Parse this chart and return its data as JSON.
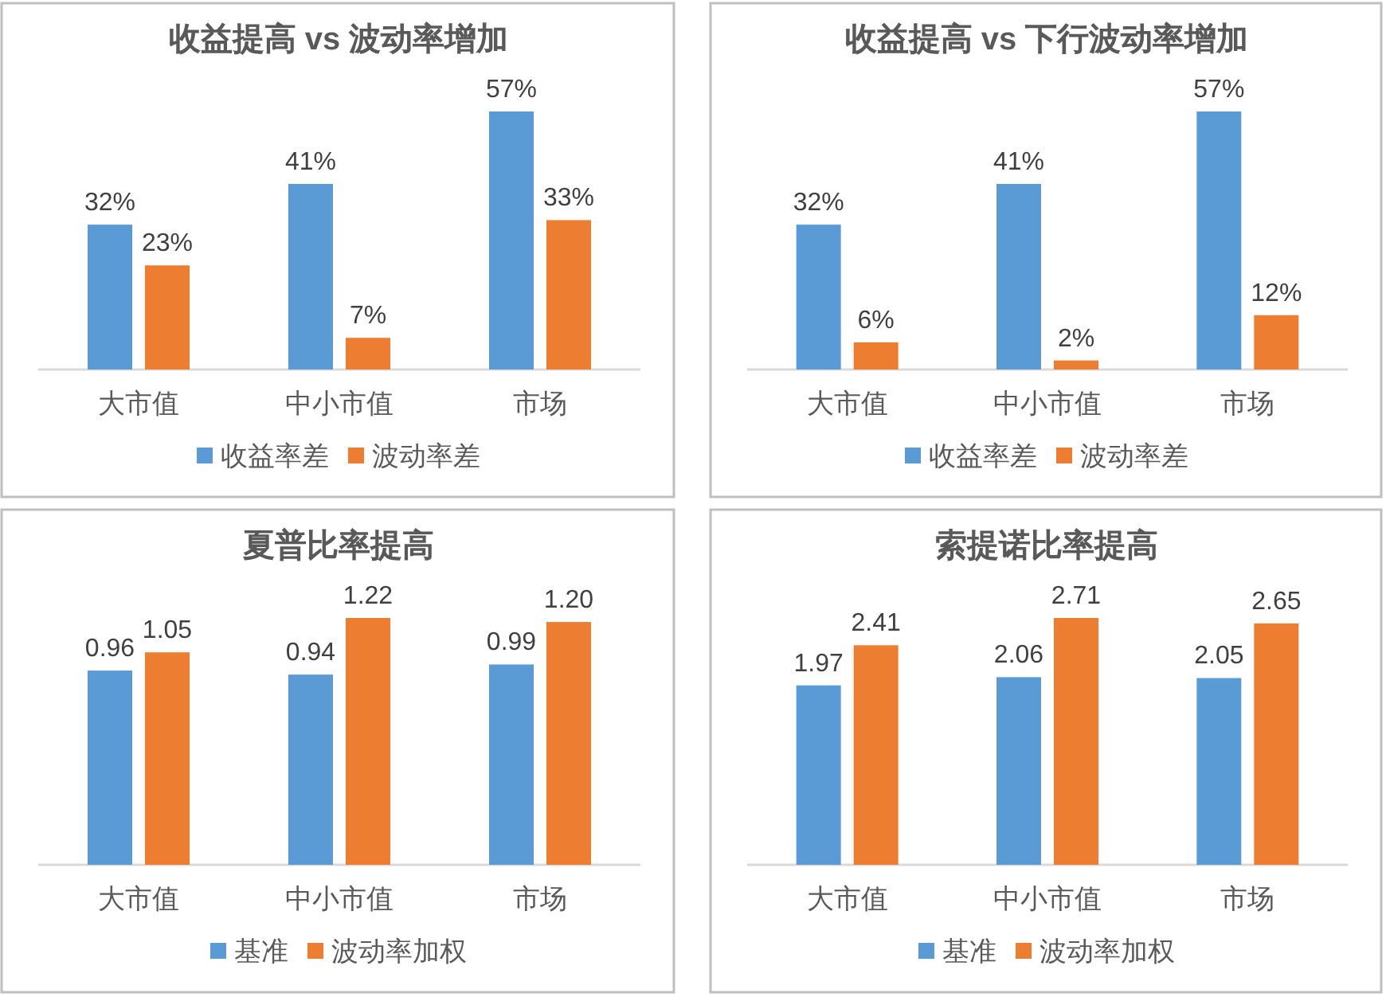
{
  "chart_data": [
    {
      "type": "bar",
      "title": "收益提高 vs 波动率增加",
      "categories": [
        "大市值",
        "中小市值",
        "市场"
      ],
      "series": [
        {
          "name": "收益率差",
          "color": "#5b9bd5",
          "values": [
            32,
            41,
            57
          ],
          "value_labels": [
            "32%",
            "41%",
            "57%"
          ]
        },
        {
          "name": "波动率差",
          "color": "#ed7d31",
          "values": [
            23,
            7,
            33
          ],
          "value_labels": [
            "23%",
            "7%",
            "33%"
          ]
        }
      ],
      "legend": "bottom"
    },
    {
      "type": "bar",
      "title": "收益提高 vs 下行波动率增加",
      "categories": [
        "大市值",
        "中小市值",
        "市场"
      ],
      "series": [
        {
          "name": "收益率差",
          "color": "#5b9bd5",
          "values": [
            32,
            41,
            57
          ],
          "value_labels": [
            "32%",
            "41%",
            "57%"
          ]
        },
        {
          "name": "波动率差",
          "color": "#ed7d31",
          "values": [
            6,
            2,
            12
          ],
          "value_labels": [
            "6%",
            "2%",
            "12%"
          ]
        }
      ],
      "legend": "bottom"
    },
    {
      "type": "bar",
      "title": "夏普比率提高",
      "categories": [
        "大市值",
        "中小市值",
        "市场"
      ],
      "series": [
        {
          "name": "基准",
          "color": "#5b9bd5",
          "values": [
            0.96,
            0.94,
            0.99
          ],
          "value_labels": [
            "0.96",
            "0.94",
            "0.99"
          ]
        },
        {
          "name": "波动率加权",
          "color": "#ed7d31",
          "values": [
            1.05,
            1.22,
            1.2
          ],
          "value_labels": [
            "1.05",
            "1.22",
            "1.20"
          ]
        }
      ],
      "legend": "bottom"
    },
    {
      "type": "bar",
      "title": "索提诺比率提高",
      "categories": [
        "大市值",
        "中小市值",
        "市场"
      ],
      "series": [
        {
          "name": "基准",
          "color": "#5b9bd5",
          "values": [
            1.97,
            2.06,
            2.05
          ],
          "value_labels": [
            "1.97",
            "2.06",
            "2.05"
          ]
        },
        {
          "name": "波动率加权",
          "color": "#ed7d31",
          "values": [
            2.41,
            2.71,
            2.65
          ],
          "value_labels": [
            "2.41",
            "2.71",
            "2.65"
          ]
        }
      ],
      "legend": "bottom"
    }
  ]
}
